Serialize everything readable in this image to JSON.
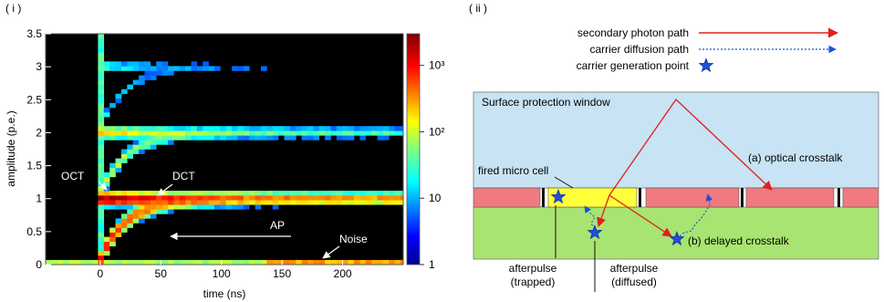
{
  "panel_i": {
    "label": "( i )",
    "xlabel": "time (ns)",
    "ylabel": "amplitude (p.e.)",
    "xticks": [
      "0",
      "50",
      "100",
      "150",
      "200"
    ],
    "yticks": [
      "0",
      "0.5",
      "1",
      "1.5",
      "2",
      "2.5",
      "3",
      "3.5"
    ],
    "colorbar_ticks": [
      "1",
      "10",
      "10²",
      "10³"
    ],
    "annotations": {
      "oct": "OCT",
      "dct": "DCT",
      "ap": "AP",
      "noise": "Noise"
    }
  },
  "panel_ii": {
    "label": "( ii )",
    "legend": {
      "secondary_photon": "secondary photon path",
      "carrier_diffusion": "carrier diffusion path",
      "generation_point": "carrier generation point"
    },
    "window_label": "Surface protection window",
    "fired_cell_label": "fired micro cell",
    "optical_crosstalk": "(a) optical crosstalk",
    "delayed_crosstalk": "(b) delayed crosstalk",
    "afterpulse_trapped": [
      "afterpulse",
      "(trapped)"
    ],
    "afterpulse_diffused": [
      "afterpulse",
      "(diffused)"
    ]
  },
  "colors": {
    "photon_path": "#e0201b",
    "diffusion_path": "#1f4fd8",
    "star": "#1f4fd8",
    "window": "#c7e3f4",
    "cells": "#f07a80",
    "fired_cell": "#ffff3a",
    "substrate": "#a8e472"
  },
  "chart_data": {
    "type": "heatmap",
    "xlabel": "time (ns)",
    "ylabel": "amplitude (p.e.)",
    "xlim": [
      -45,
      250
    ],
    "ylim": [
      0,
      3.5
    ],
    "xticks": [
      0,
      50,
      100,
      150,
      200
    ],
    "yticks": [
      0,
      0.5,
      1,
      1.5,
      2,
      2.5,
      3,
      3.5
    ],
    "color_scale": "log",
    "color_range": [
      1,
      3000
    ],
    "colormap": "jet",
    "colorbar_ticks": [
      1,
      10,
      100,
      1000
    ],
    "annotations": [
      {
        "text": "OCT",
        "x": 0,
        "y": 1.05
      },
      {
        "text": "DCT",
        "x": 20,
        "y": 0.85
      },
      {
        "text": "AP",
        "x": 40,
        "y": 0.35
      },
      {
        "text": "Noise",
        "x": 170,
        "y": 0.02
      }
    ]
  }
}
